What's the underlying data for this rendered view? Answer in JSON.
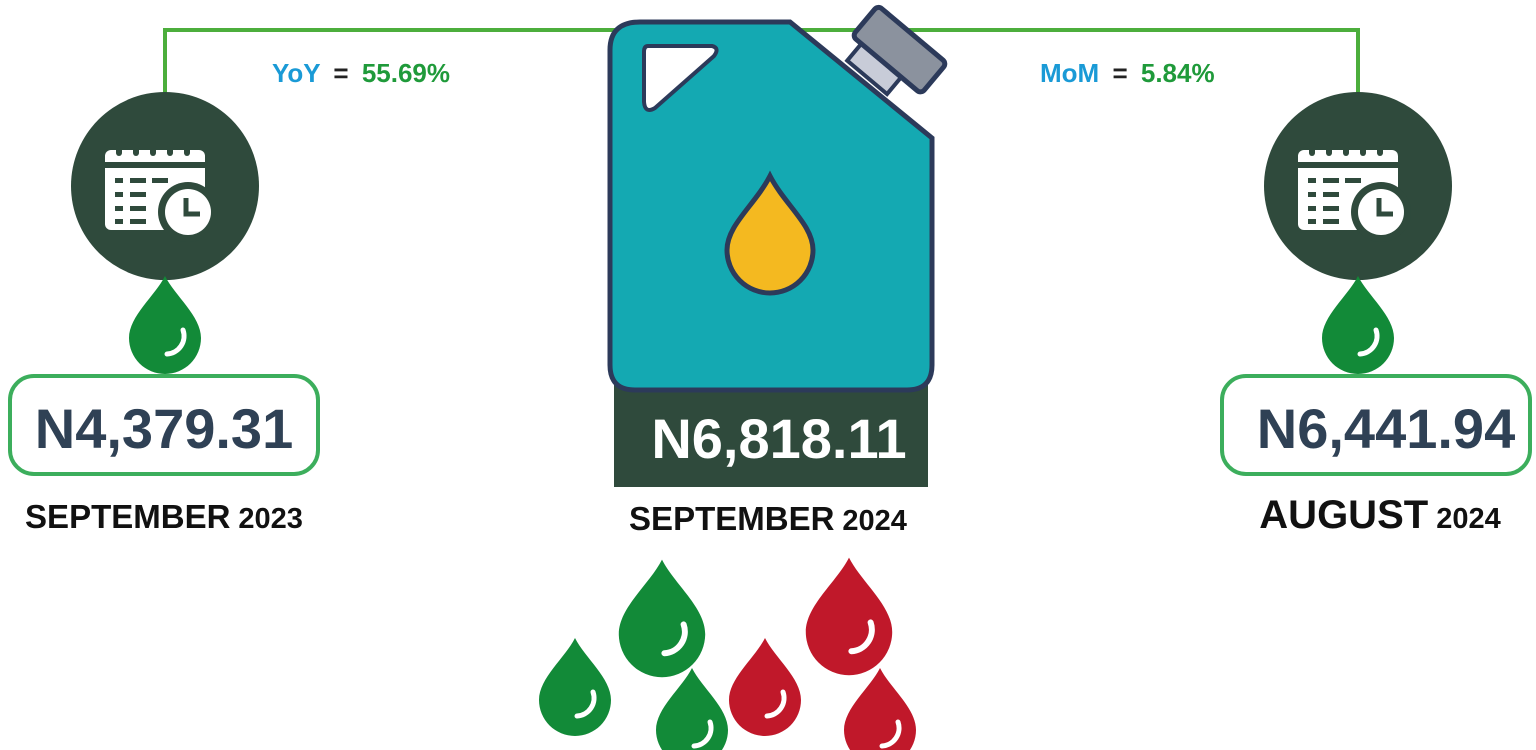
{
  "comparisons": [
    {
      "label": "YoY",
      "sign": "=",
      "value": "55.69%"
    },
    {
      "label": "MoM",
      "sign": "=",
      "value": "5.84%"
    }
  ],
  "previous_year": {
    "price": "N4,379.31",
    "month": "SEPTEMBER",
    "year": "2023"
  },
  "current": {
    "price": "N6,818.11",
    "month": "SEPTEMBER",
    "year": "2024"
  },
  "previous_month": {
    "price": "N6,441.94",
    "month": "AUGUST",
    "year": "2024"
  }
}
